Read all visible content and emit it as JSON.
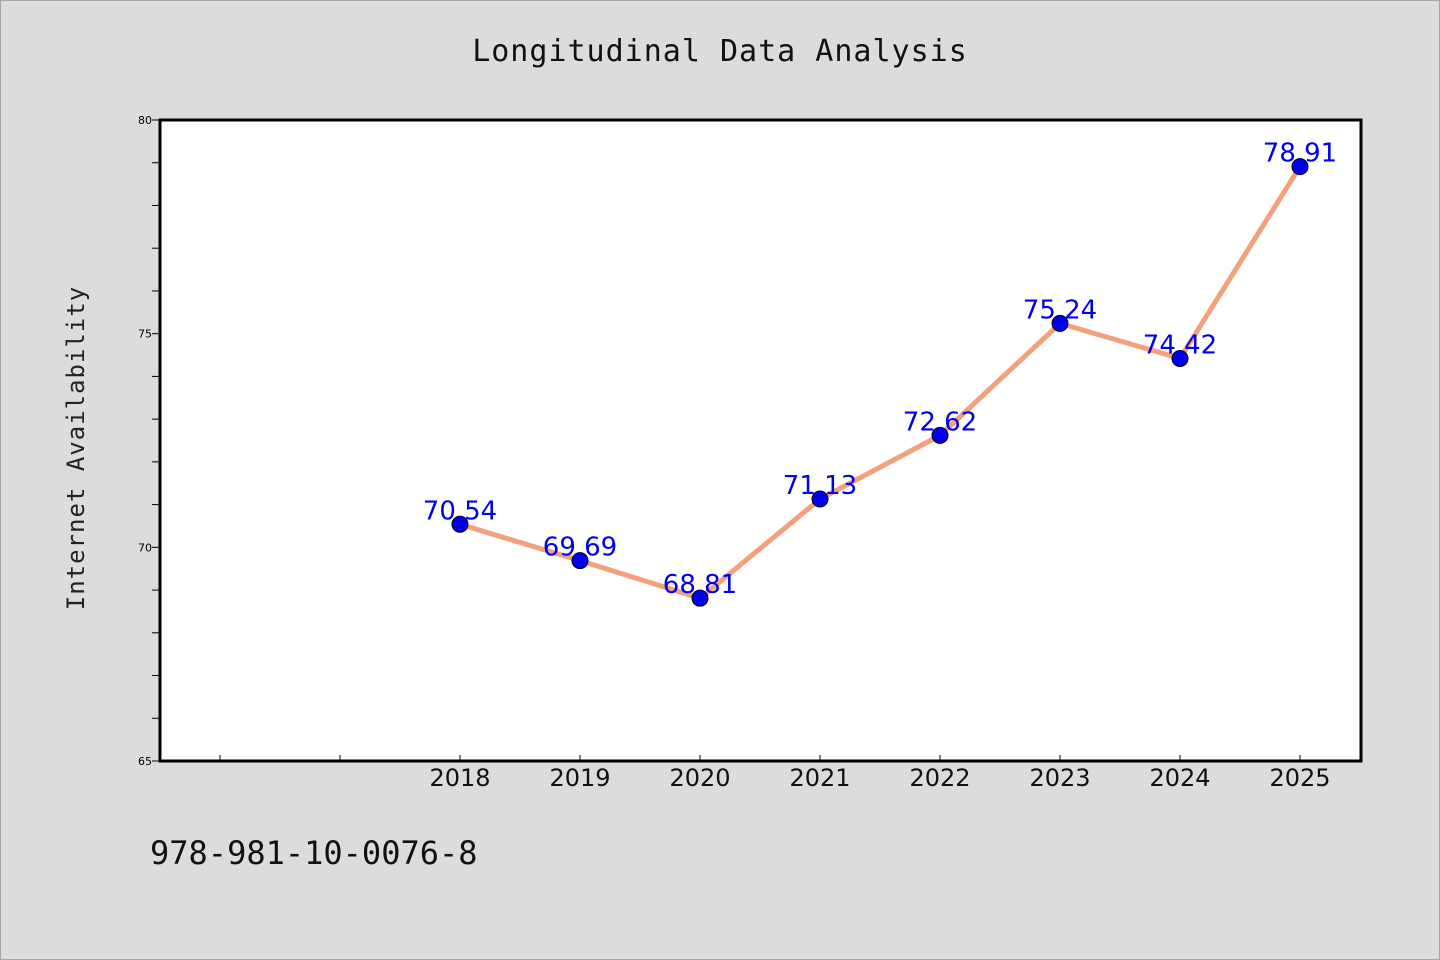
{
  "chart_data": {
    "type": "line",
    "title": "Longitudinal Data Analysis",
    "xlabel": "",
    "ylabel": "Internet Availability",
    "categories": [
      "2018",
      "2019",
      "2020",
      "2021",
      "2022",
      "2023",
      "2024",
      "2025"
    ],
    "series": [
      {
        "values": [
          70.54,
          69.69,
          68.81,
          71.13,
          72.62,
          75.24,
          74.42,
          78.91
        ],
        "labels": [
          "70.54",
          "69.69",
          "68.81",
          "71.13",
          "72.62",
          "75.24",
          "74.42",
          "78.91"
        ]
      }
    ],
    "ylim": [
      65,
      80
    ],
    "y_ticks": [
      "65",
      "70",
      "75",
      "80"
    ],
    "grid": false,
    "line_color": "#f4a07c",
    "marker_color": "#0000ee",
    "label_color": "#0000ee"
  },
  "footer": {
    "isbn": "978-981-10-0076-8"
  }
}
